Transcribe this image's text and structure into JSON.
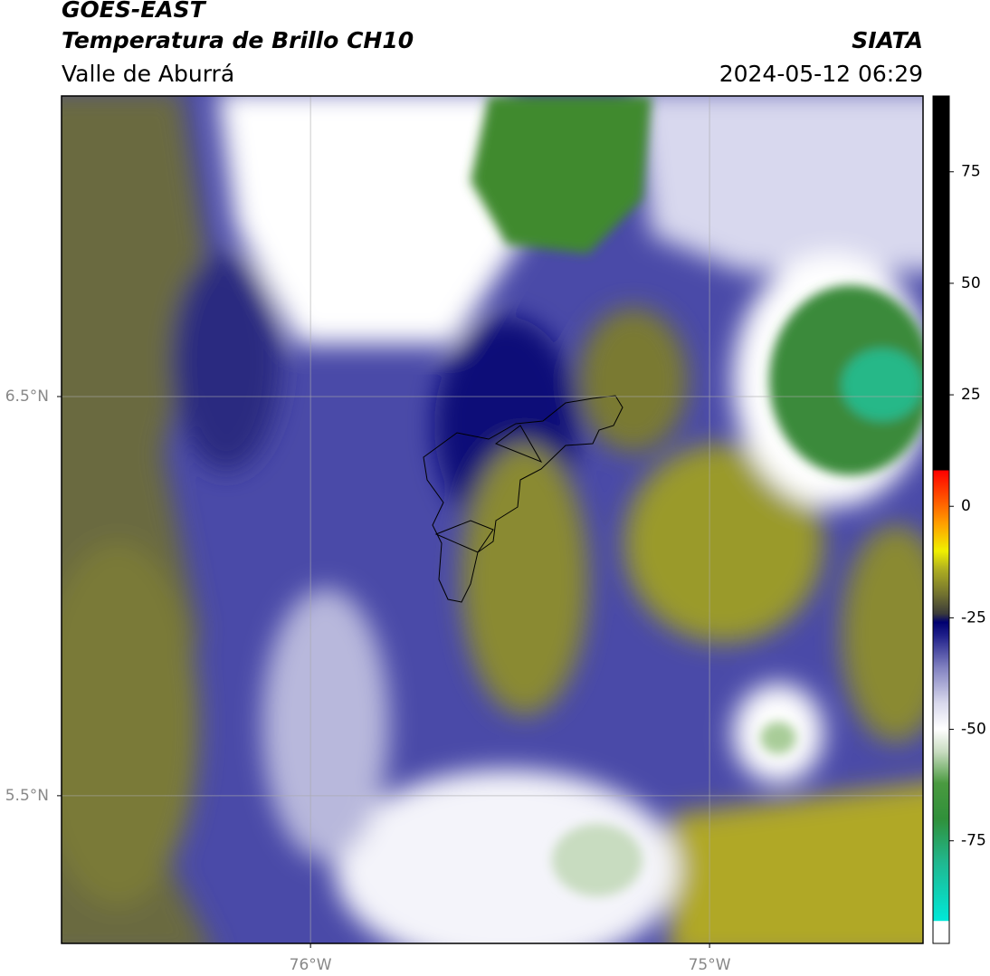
{
  "header": {
    "line1": "GOES-EAST",
    "line2": "Temperatura de Brillo CH10",
    "line3": "Valle de Aburrá",
    "org": "SIATA",
    "datetime": "2024-05-12 06:29"
  },
  "map": {
    "xlim": [
      -76.624,
      -74.465
    ],
    "ylim": [
      5.13,
      7.253
    ],
    "xticks": [
      {
        "value": -76,
        "label": "76°W"
      },
      {
        "value": -75,
        "label": "75°W"
      }
    ],
    "yticks": [
      {
        "value": 6.5,
        "label": "6.5°N"
      },
      {
        "value": 5.5,
        "label": "5.5°N"
      }
    ],
    "grid": true
  },
  "colorbar": {
    "lim": [
      -98,
      92
    ],
    "ticks": [
      75,
      50,
      25,
      0,
      -25,
      -50,
      -75
    ]
  }
}
